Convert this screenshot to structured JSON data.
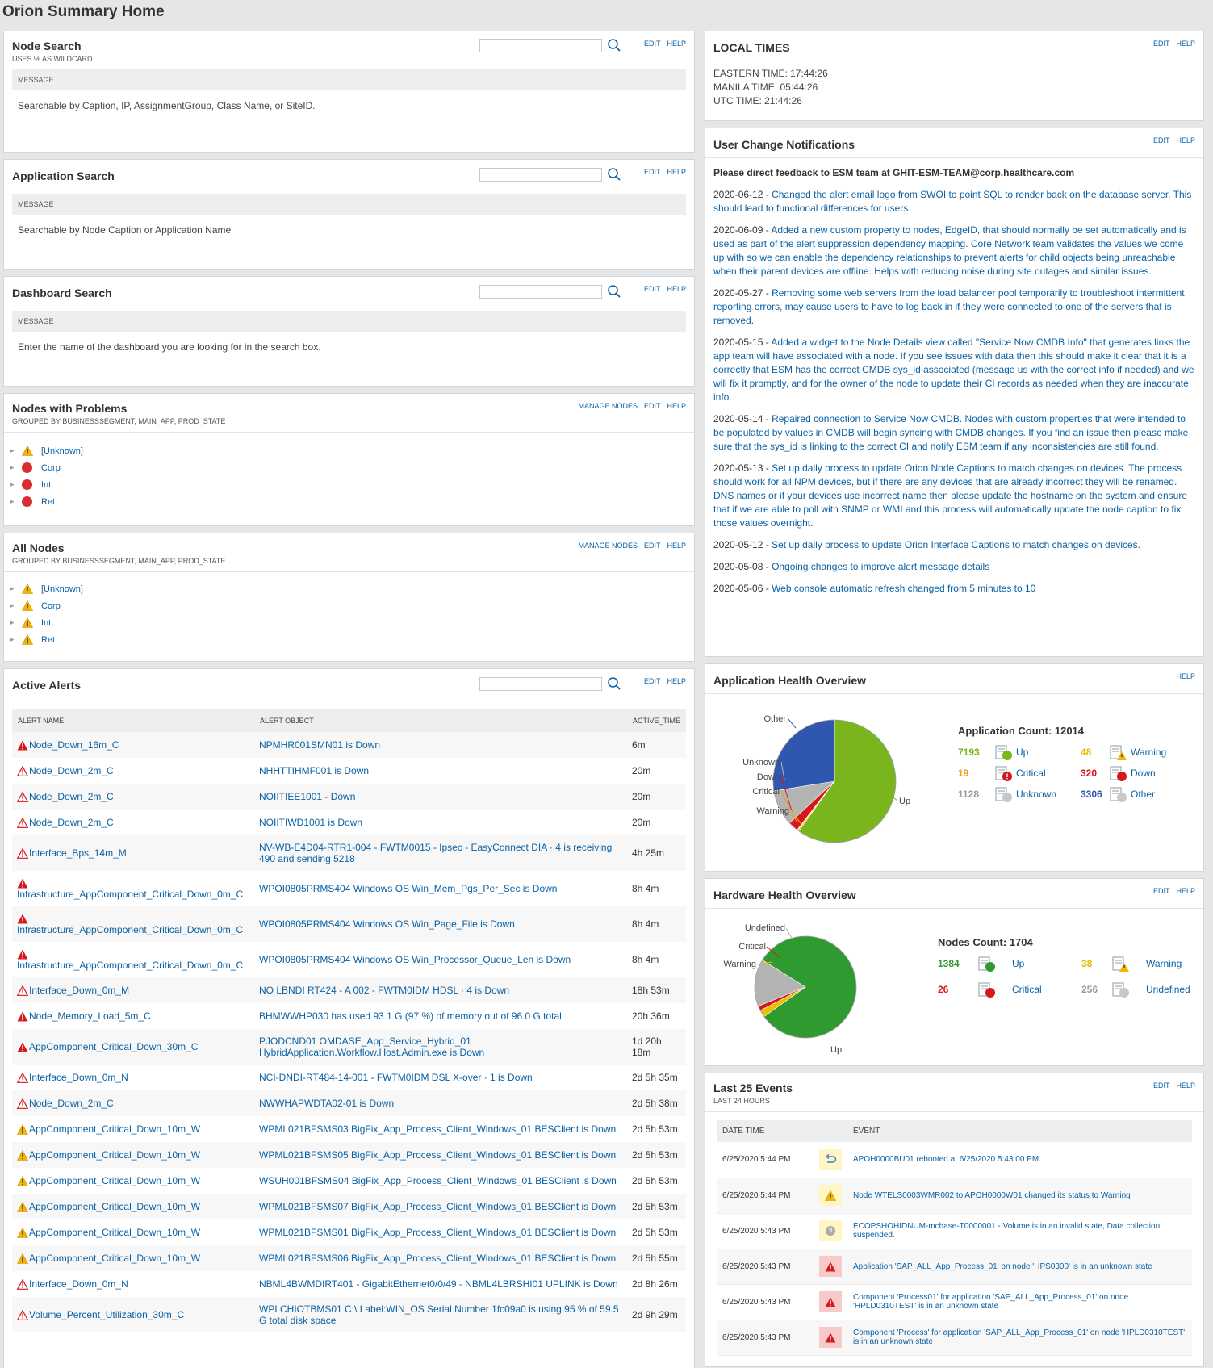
{
  "page_title": "Orion Summary Home",
  "common": {
    "edit": "EDIT",
    "help": "HELP",
    "manage_nodes": "MANAGE NODES"
  },
  "node_search": {
    "title": "Node Search",
    "subtitle": "USES % AS WILDCARD",
    "msg_head": "MESSAGE",
    "msg": "Searchable by Caption, IP, AssignmentGroup, Class Name, or SiteID."
  },
  "app_search": {
    "title": "Application Search",
    "msg_head": "MESSAGE",
    "msg": "Searchable by Node Caption or Application Name"
  },
  "dash_search": {
    "title": "Dashboard Search",
    "msg_head": "MESSAGE",
    "msg": "Enter the name of the dashboard you are looking for in the search box."
  },
  "nodes_problems": {
    "title": "Nodes with Problems",
    "subtitle": "GROUPED BY BUSINESSSEGMENT, MAIN_APP, PROD_STATE",
    "items": [
      {
        "label": "[Unknown]",
        "icon": "warning-icon"
      },
      {
        "label": "Corp",
        "icon": "down-icon"
      },
      {
        "label": "Intl",
        "icon": "down-icon"
      },
      {
        "label": "Ret",
        "icon": "down-icon"
      }
    ]
  },
  "all_nodes": {
    "title": "All Nodes",
    "subtitle": "GROUPED BY BUSINESSSEGMENT, MAIN_APP, PROD_STATE",
    "items": [
      {
        "label": "[Unknown]",
        "icon": "warning-icon"
      },
      {
        "label": "Corp",
        "icon": "warning-icon"
      },
      {
        "label": "Intl",
        "icon": "warning-icon"
      },
      {
        "label": "Ret",
        "icon": "warning-icon"
      }
    ]
  },
  "active_alerts": {
    "title": "Active Alerts",
    "headers": [
      "ALERT NAME",
      "ALERT OBJECT",
      "ACTIVE_TIME"
    ],
    "rows": [
      {
        "name": "Node_Down_16m_C",
        "object": "NPMHR001SMN01 is Down",
        "time": "6m",
        "sev": "critical"
      },
      {
        "name": "Node_Down_2m_C",
        "object": "NHHTTIHMF001 is Down",
        "time": "20m",
        "sev": "critical-outline"
      },
      {
        "name": "Node_Down_2m_C",
        "object": "NOIITIEE1001 - Down",
        "time": "20m",
        "sev": "critical-outline"
      },
      {
        "name": "Node_Down_2m_C",
        "object": "NOIITIWD1001 is Down",
        "time": "20m",
        "sev": "critical-outline"
      },
      {
        "name": "Interface_Bps_14m_M",
        "object": "NV-WB-E4D04-RTR1-004 - FWTM0015 - Ipsec - EasyConnect DIA · 4 is receiving 490 and sending 5218",
        "time": "4h 25m",
        "sev": "critical-outline"
      },
      {
        "name": "Infrastructure_AppComponent_Critical_Down_0m_C",
        "object": "WPOI0805PRMS404 Windows OS Win_Mem_Pgs_Per_Sec is Down",
        "time": "8h 4m",
        "sev": "critical"
      },
      {
        "name": "Infrastructure_AppComponent_Critical_Down_0m_C",
        "object": "WPOI0805PRMS404 Windows OS Win_Page_File is Down",
        "time": "8h 4m",
        "sev": "critical"
      },
      {
        "name": "Infrastructure_AppComponent_Critical_Down_0m_C",
        "object": "WPOI0805PRMS404 Windows OS Win_Processor_Queue_Len is Down",
        "time": "8h 4m",
        "sev": "critical"
      },
      {
        "name": "Interface_Down_0m_M",
        "object": "NO LBNDI RT424 - A 002 - FWTM0IDM HDSL · 4 is Down",
        "time": "18h 53m",
        "sev": "critical-outline"
      },
      {
        "name": "Node_Memory_Load_5m_C",
        "object": "BHMWWHP030 has used 93.1 G (97 %) of memory out of 96.0 G total",
        "time": "20h 36m",
        "sev": "critical"
      },
      {
        "name": "AppComponent_Critical_Down_30m_C",
        "object": "PJODCND01 OMDASE_App_Service_Hybrid_01 HybridApplication.Workflow.Host.Admin.exe is Down",
        "time": "1d 20h 18m",
        "sev": "critical"
      },
      {
        "name": "Interface_Down_0m_N",
        "object": "NCI-DNDI-RT484-14-001 - FWTM0IDM DSL X-over · 1 is Down",
        "time": "2d 5h 35m",
        "sev": "critical-outline"
      },
      {
        "name": "Node_Down_2m_C",
        "object": "NWWHAPWDTA02-01 is Down",
        "time": "2d 5h 38m",
        "sev": "critical-outline"
      },
      {
        "name": "AppComponent_Critical_Down_10m_W",
        "object": "WPML021BFSMS03 BigFix_App_Process_Client_Windows_01 BESClient is Down",
        "time": "2d 5h 53m",
        "sev": "warning"
      },
      {
        "name": "AppComponent_Critical_Down_10m_W",
        "object": "WPML021BFSMS05 BigFix_App_Process_Client_Windows_01 BESClient is Down",
        "time": "2d 5h 53m",
        "sev": "warning"
      },
      {
        "name": "AppComponent_Critical_Down_10m_W",
        "object": "WSUH001BFSMS04 BigFix_App_Process_Client_Windows_01 BESClient is Down",
        "time": "2d 5h 53m",
        "sev": "warning"
      },
      {
        "name": "AppComponent_Critical_Down_10m_W",
        "object": "WPML021BFSMS07 BigFix_App_Process_Client_Windows_01 BESClient is Down",
        "time": "2d 5h 53m",
        "sev": "warning"
      },
      {
        "name": "AppComponent_Critical_Down_10m_W",
        "object": "WPML021BFSMS01 BigFix_App_Process_Client_Windows_01 BESClient is Down",
        "time": "2d 5h 53m",
        "sev": "warning"
      },
      {
        "name": "AppComponent_Critical_Down_10m_W",
        "object": "WPML021BFSMS06 BigFix_App_Process_Client_Windows_01 BESClient is Down",
        "time": "2d 5h 55m",
        "sev": "warning"
      },
      {
        "name": "Interface_Down_0m_N",
        "object": "NBML4BWMDIRT401 - GigabitEthernet0/0/49 - NBML4LBRSHI01 UPLINK is Down",
        "time": "2d 8h 26m",
        "sev": "critical-outline"
      },
      {
        "name": "Volume_Percent_Utilization_30m_C",
        "object": "WPLCHIOTBMS01 C:\\ Label:WIN_OS Serial Number 1fc09a0 is using 95 % of 59.5 G total disk space",
        "time": "2d 9h 29m",
        "sev": "critical-outline"
      }
    ]
  },
  "local_times": {
    "title": "LOCAL TIMES",
    "lines": [
      "EASTERN TIME: 17:44:26",
      "MANILA TIME: 05:44:26",
      "UTC TIME: 21:44:26"
    ]
  },
  "ucn": {
    "title": "User Change Notifications",
    "feedback": "Please direct feedback to ESM team at GHIT-ESM-TEAM@corp.healthcare.com",
    "notes": [
      {
        "date": "2020-06-12",
        "text": "Changed the alert email logo from SWOI to point SQL to render back on the database server. This should lead to functional differences for users."
      },
      {
        "date": "2020-06-09",
        "text": "Added a new custom property to nodes, EdgeID, that should normally be set automatically and is used as part of the alert suppression dependency mapping. Core Network team validates the values we come up with so we can enable the dependency relationships to prevent alerts for child objects being unreachable when their parent devices are offline. Helps with reducing noise during site outages and similar issues."
      },
      {
        "date": "2020-05-27",
        "text": "Removing some web servers from the load balancer pool temporarily to troubleshoot intermittent reporting errors, may cause users to have to log back in if they were connected to one of the servers that is removed."
      },
      {
        "date": "2020-05-15",
        "text": "Added a widget to the Node Details view called \"Service Now CMDB Info\" that generates links the app team will have associated with a node. If you see issues with data then this should make it clear that it is a correctly that ESM has the correct CMDB sys_id associated (message us with the correct info if needed) and we will fix it promptly, and for the owner of the node to update their CI records as needed when they are inaccurate info."
      },
      {
        "date": "2020-05-14",
        "text": "Repaired connection to Service Now CMDB. Nodes with custom properties that were intended to be populated by values in CMDB will begin syncing with CMDB changes. If you find an issue then please make sure that the sys_id is linking to the correct CI and notify ESM team if any inconsistencies are still found."
      },
      {
        "date": "2020-05-13",
        "text": "Set up daily process to update Orion Node Captions to match changes on devices. The process should work for all NPM devices, but if there are any devices that are already incorrect they will be renamed. DNS names or if your devices use incorrect name then please update the hostname on the system and ensure that if we are able to poll with SNMP or WMI and this process will automatically update the node caption to fix those values overnight."
      },
      {
        "date": "2020-05-12",
        "text": "Set up daily process to update Orion Interface Captions to match changes on devices."
      },
      {
        "date": "2020-05-08",
        "text": "Ongoing changes to improve alert message details"
      },
      {
        "date": "2020-05-06",
        "text": "Web console automatic refresh changed from 5 minutes to 10"
      }
    ]
  },
  "app_health": {
    "title": "Application Health Overview",
    "count_label": "Application Count: 12014",
    "legend": [
      {
        "num": "7193",
        "label": "Up",
        "cls": "up",
        "icon": "up-status-icon"
      },
      {
        "num": "48",
        "label": "Warning",
        "cls": "warn",
        "icon": "warning-status-icon"
      },
      {
        "num": "19",
        "label": "Critical",
        "cls": "crit",
        "icon": "critical-status-icon"
      },
      {
        "num": "320",
        "label": "Down",
        "cls": "down",
        "icon": "down-status-icon"
      },
      {
        "num": "1128",
        "label": "Unknown",
        "cls": "unk",
        "icon": "unknown-status-icon"
      },
      {
        "num": "3306",
        "label": "Other",
        "cls": "oth",
        "icon": "other-status-icon"
      }
    ]
  },
  "hw_health": {
    "title": "Hardware Health Overview",
    "count_label": "Nodes Count: 1704",
    "legend": [
      {
        "num": "1384",
        "label": "Up",
        "cls": "up2",
        "icon": "up-status-icon"
      },
      {
        "num": "38",
        "label": "Warning",
        "cls": "warn",
        "icon": "warning-status-icon"
      },
      {
        "num": "26",
        "label": "Critical",
        "cls": "down",
        "icon": "critical-status-icon"
      },
      {
        "num": "256",
        "label": "Undefined",
        "cls": "unk",
        "icon": "undefined-status-icon"
      }
    ]
  },
  "events": {
    "title": "Last 25 Events",
    "subtitle": "LAST 24 HOURS",
    "headers": [
      "DATE TIME",
      "EVENT"
    ],
    "rows": [
      {
        "date": "6/25/2020 5:44 PM",
        "text": "APOH0000BU01 rebooted at 6/25/2020 5:43:00 PM",
        "type": "reboot"
      },
      {
        "date": "6/25/2020 5:44 PM",
        "text": "Node WTELS0003WMR002 to APOH0000W01 changed its status to Warning",
        "type": "warning"
      },
      {
        "date": "6/25/2020 5:43 PM",
        "text": "ECOPSHOHIDNUM-mchase-T0000001 - Volume is in an invalid state, Data collection suspended.",
        "type": "unknown"
      },
      {
        "date": "6/25/2020 5:43 PM",
        "text": "Application 'SAP_ALL_App_Process_01' on node 'HPS0300' is in an unknown state",
        "type": "critical"
      },
      {
        "date": "6/25/2020 5:43 PM",
        "text": "Component 'Process01' for application 'SAP_ALL_App_Process_01' on node 'HPLD0310TEST' is in an unknown state",
        "type": "critical"
      },
      {
        "date": "6/25/2020 5:43 PM",
        "text": "Component 'Process' for application 'SAP_ALL_App_Process_01' on node 'HPLD0310TEST' is in an unknown state",
        "type": "critical"
      }
    ]
  },
  "chart_data": [
    {
      "type": "pie",
      "title": "Application Health Overview",
      "categories": [
        "Up",
        "Warning",
        "Critical",
        "Down",
        "Unknown",
        "Other"
      ],
      "values": [
        7193,
        48,
        19,
        320,
        1128,
        3306
      ],
      "colors": [
        "#7ab51d",
        "#f5b915",
        "#f39c12",
        "#d6171c",
        "#b3b3b3",
        "#2f57b0"
      ]
    },
    {
      "type": "pie",
      "title": "Hardware Health Overview",
      "categories": [
        "Up",
        "Warning",
        "Critical",
        "Undefined"
      ],
      "values": [
        1384,
        38,
        26,
        256
      ],
      "colors": [
        "#2f9a2f",
        "#e8c000",
        "#d6171c",
        "#b3b3b3"
      ]
    }
  ]
}
